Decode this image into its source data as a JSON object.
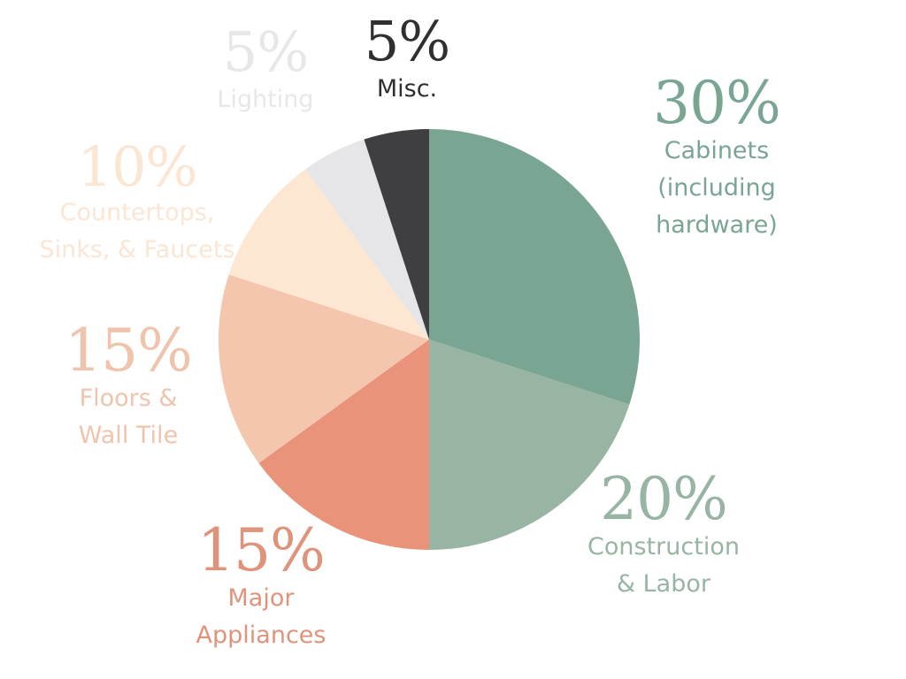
{
  "chart_data": {
    "type": "pie",
    "start_angle_deg": 0,
    "direction": "clockwise",
    "slices": [
      {
        "percent_label": "30%",
        "value": 30,
        "name_lines": [
          "Cabinets",
          "(including",
          "hardware)"
        ],
        "color": "#79a592",
        "label_color": "#79a592"
      },
      {
        "percent_label": "20%",
        "value": 20,
        "name_lines": [
          "Construction",
          "& Labor"
        ],
        "color": "#98b4a3",
        "label_color": "#98b4a3"
      },
      {
        "percent_label": "15%",
        "value": 15,
        "name_lines": [
          "Major",
          "Appliances"
        ],
        "color": "#e8937a",
        "label_color": "#e0937b"
      },
      {
        "percent_label": "15%",
        "value": 15,
        "name_lines": [
          "Floors &",
          "Wall Tile"
        ],
        "color": "#f4c6ae",
        "label_color": "#f0c4ac"
      },
      {
        "percent_label": "10%",
        "value": 10,
        "name_lines": [
          "Countertops,",
          "Sinks, & Faucets"
        ],
        "color": "#fde7d2",
        "label_color": "#fbe6d3"
      },
      {
        "percent_label": "5%",
        "value": 5,
        "name_lines": [
          "Lighting"
        ],
        "color": "#e6e6e8",
        "label_color": "#e7e7ea"
      },
      {
        "percent_label": "5%",
        "value": 5,
        "name_lines": [
          "Misc."
        ],
        "color": "#3f3f42",
        "label_color": "#2f2f31"
      }
    ]
  }
}
